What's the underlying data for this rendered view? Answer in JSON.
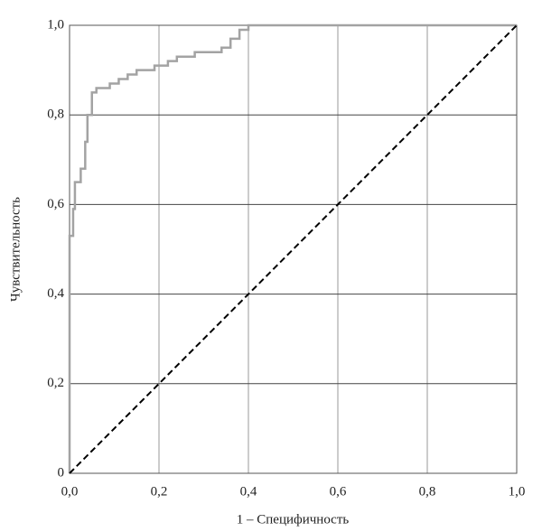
{
  "chart_data": {
    "type": "line",
    "xlabel": "1 – Специфичность",
    "ylabel": "Чувствительность",
    "xlim": [
      0,
      1
    ],
    "ylim": [
      0,
      1
    ],
    "xticks": [
      {
        "value": 0,
        "label": "0,0"
      },
      {
        "value": 0.2,
        "label": "0,2"
      },
      {
        "value": 0.4,
        "label": "0,4"
      },
      {
        "value": 0.6,
        "label": "0,6"
      },
      {
        "value": 0.8,
        "label": "0,8"
      },
      {
        "value": 1,
        "label": "1,0"
      }
    ],
    "yticks": [
      0,
      {
        "value": 0.2,
        "label": "0,2"
      },
      {
        "value": 0.4,
        "label": "0,4"
      },
      {
        "value": 0.6,
        "label": "0,6"
      },
      {
        "value": 0.8,
        "label": "0,8"
      },
      {
        "value": 1,
        "label": "1,0"
      }
    ],
    "grid": true,
    "series": [
      {
        "color": "#a3a3a3",
        "style": "solid",
        "x": [
          0,
          0,
          0.008,
          0.008,
          0.012,
          0.012,
          0.025,
          0.025,
          0.035,
          0.035,
          0.04,
          0.04,
          0.05,
          0.05,
          0.06,
          0.06,
          0.09,
          0.09,
          0.11,
          0.11,
          0.13,
          0.13,
          0.15,
          0.15,
          0.19,
          0.19,
          0.22,
          0.22,
          0.24,
          0.24,
          0.28,
          0.28,
          0.34,
          0.34,
          0.36,
          0.36,
          0.38,
          0.38,
          0.4,
          0.4,
          1
        ],
        "values": [
          0,
          0.53,
          0.53,
          0.59,
          0.59,
          0.65,
          0.65,
          0.68,
          0.68,
          0.74,
          0.74,
          0.8,
          0.8,
          0.85,
          0.85,
          0.86,
          0.86,
          0.87,
          0.87,
          0.88,
          0.88,
          0.89,
          0.89,
          0.9,
          0.9,
          0.91,
          0.91,
          0.92,
          0.92,
          0.93,
          0.93,
          0.94,
          0.94,
          0.95,
          0.95,
          0.97,
          0.97,
          0.99,
          0.99,
          1,
          1
        ]
      },
      {
        "color": "#000000",
        "style": "dashed",
        "x": [
          0,
          1
        ],
        "values": [
          0,
          1
        ]
      }
    ]
  }
}
